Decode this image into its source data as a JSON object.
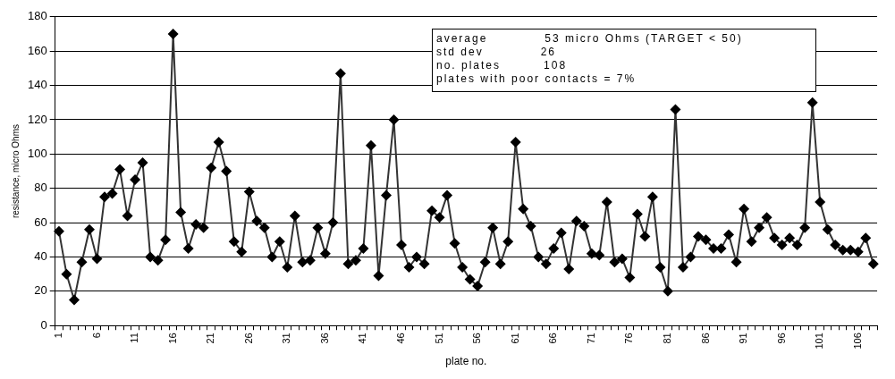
{
  "chart_data": {
    "type": "line",
    "xlabel": "plate no.",
    "ylabel": "resistance, micro Ohms",
    "categories": [
      "1",
      null,
      null,
      null,
      null,
      "6",
      null,
      null,
      null,
      null,
      "11",
      null,
      null,
      null,
      null,
      "16",
      null,
      null,
      null,
      null,
      "21",
      null,
      null,
      null,
      null,
      "26",
      null,
      null,
      null,
      null,
      "31",
      null,
      null,
      null,
      null,
      "36",
      null,
      null,
      null,
      null,
      "41",
      null,
      null,
      null,
      null,
      "46",
      null,
      null,
      null,
      null,
      "51",
      null,
      null,
      null,
      null,
      "56",
      null,
      null,
      null,
      null,
      "61",
      null,
      null,
      null,
      null,
      "66",
      null,
      null,
      null,
      null,
      "71",
      null,
      null,
      null,
      null,
      "76",
      null,
      null,
      null,
      null,
      "81",
      null,
      null,
      null,
      null,
      "86",
      null,
      null,
      null,
      null,
      "91",
      null,
      null,
      null,
      null,
      "96",
      null,
      null,
      null,
      null,
      "101",
      null,
      null,
      null,
      null,
      "106",
      null,
      null
    ],
    "series": [
      {
        "color": "#000000",
        "values": [
          55,
          30,
          15,
          37,
          56,
          39,
          75,
          77,
          91,
          64,
          85,
          95,
          40,
          38,
          50,
          170,
          66,
          45,
          59,
          57,
          92,
          107,
          90,
          49,
          43,
          78,
          61,
          57,
          40,
          49,
          34,
          64,
          37,
          38,
          57,
          42,
          60,
          147,
          36,
          38,
          45,
          105,
          29,
          76,
          120,
          47,
          34,
          40,
          36,
          67,
          63,
          76,
          48,
          34,
          27,
          23,
          37,
          57,
          36,
          49,
          107,
          68,
          58,
          40,
          36,
          45,
          54,
          33,
          61,
          58,
          42,
          41,
          72,
          37,
          39,
          28,
          65,
          52,
          75,
          34,
          20,
          126,
          34,
          40,
          52,
          50,
          45,
          45,
          53,
          37,
          68,
          49,
          57,
          63,
          51,
          47,
          51,
          47,
          57,
          130,
          72,
          56,
          47,
          44,
          44,
          43,
          51,
          36
        ]
      }
    ],
    "ylim": [
      0,
      180
    ],
    "yticks": [
      0,
      20,
      40,
      60,
      80,
      100,
      120,
      140,
      160,
      180
    ],
    "grid": "y",
    "marker": "diamond",
    "line_style": "solid",
    "legend": false,
    "annotations": [
      "average            53 micro Ohms (TARGET < 50)",
      "std dev            26",
      "no. plates         108",
      "plates with poor contacts = 7%"
    ]
  }
}
